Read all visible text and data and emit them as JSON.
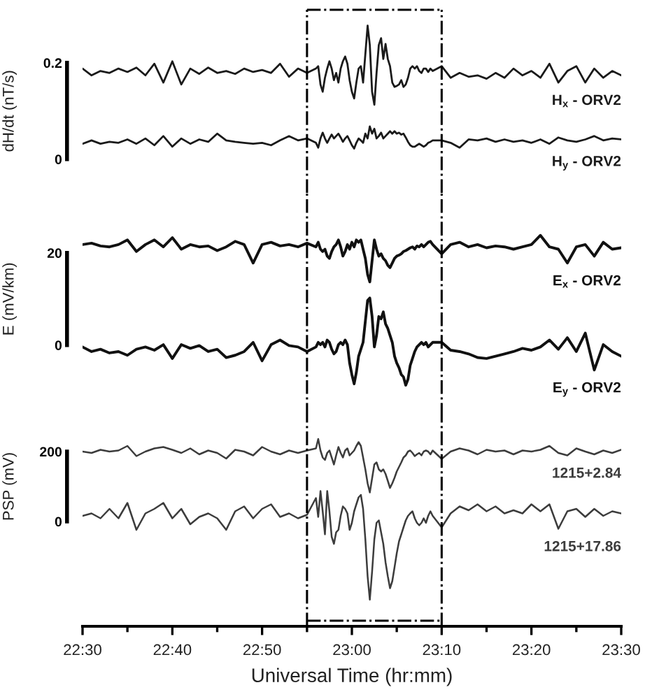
{
  "chart_data": [
    {
      "type": "line",
      "ylabel": "dH/dt (nT/s)",
      "xlim": [
        22.5,
        23.5
      ],
      "ylim": [
        -0.07,
        0.31
      ],
      "yticks": [
        0,
        0.2
      ],
      "tick_labels": "y",
      "ref_lines": [
        {
          "axis": "x",
          "value": 22.9167,
          "color": "#000000",
          "line_style": "dashdot"
        },
        {
          "axis": "x",
          "value": 23.1667,
          "color": "#000000",
          "line_style": "dashdot"
        }
      ],
      "x": [
        22.5,
        22.5167,
        22.5333,
        22.55,
        22.5667,
        22.5833,
        22.6,
        22.6167,
        22.6333,
        22.65,
        22.6667,
        22.6833,
        22.7,
        22.7167,
        22.7333,
        22.75,
        22.7667,
        22.7833,
        22.8,
        22.8167,
        22.8333,
        22.85,
        22.8667,
        22.8833,
        22.9,
        22.9167,
        22.9333,
        22.9375,
        22.9417,
        22.9458,
        22.95,
        22.9542,
        22.9583,
        22.9625,
        22.9667,
        22.9708,
        22.975,
        22.9792,
        22.9833,
        22.9875,
        22.9917,
        22.9958,
        23.0,
        23.0042,
        23.0083,
        23.0125,
        23.0167,
        23.0208,
        23.025,
        23.0292,
        23.0333,
        23.0375,
        23.0417,
        23.0458,
        23.05,
        23.0542,
        23.0583,
        23.0625,
        23.0667,
        23.0708,
        23.075,
        23.0792,
        23.0833,
        23.0875,
        23.0917,
        23.0958,
        23.1,
        23.1042,
        23.1083,
        23.1125,
        23.1167,
        23.1208,
        23.125,
        23.1292,
        23.1333,
        23.1375,
        23.1417,
        23.1458,
        23.15,
        23.1667,
        23.1833,
        23.2,
        23.2167,
        23.2333,
        23.25,
        23.2667,
        23.2833,
        23.3,
        23.3167,
        23.3333,
        23.35,
        23.3667,
        23.3833,
        23.4,
        23.4167,
        23.4333,
        23.45,
        23.4667,
        23.4833,
        23.5
      ],
      "series": [
        {
          "name": "H$_{x}$ - ORV2",
          "color": "#1a1a1a",
          "values": [
            0.188,
            0.174,
            0.183,
            0.179,
            0.188,
            0.181,
            0.19,
            0.174,
            0.198,
            0.159,
            0.203,
            0.155,
            0.188,
            0.177,
            0.19,
            0.179,
            0.183,
            0.177,
            0.188,
            0.181,
            0.185,
            0.179,
            0.198,
            0.171,
            0.188,
            0.179,
            0.188,
            0.193,
            0.155,
            0.14,
            0.169,
            0.188,
            0.203,
            0.188,
            0.164,
            0.179,
            0.159,
            0.188,
            0.203,
            0.213,
            0.198,
            0.164,
            0.14,
            0.126,
            0.159,
            0.188,
            0.193,
            0.159,
            0.218,
            0.277,
            0.237,
            0.14,
            0.113,
            0.179,
            0.237,
            0.251,
            0.208,
            0.239,
            0.208,
            0.193,
            0.159,
            0.15,
            0.152,
            0.155,
            0.164,
            0.15,
            0.155,
            0.169,
            0.188,
            0.193,
            0.188,
            0.193,
            0.183,
            0.179,
            0.188,
            0.188,
            0.181,
            0.188,
            0.183,
            0.193,
            0.169,
            0.179,
            0.171,
            0.174,
            0.167,
            0.179,
            0.169,
            0.188,
            0.174,
            0.183,
            0.169,
            0.198,
            0.159,
            0.183,
            0.193,
            0.159,
            0.188,
            0.169,
            0.183,
            0.174
          ]
        },
        {
          "name": "H$_{y}$ - ORV2",
          "color": "#1a1a1a",
          "values": [
            0.032,
            0.039,
            0.032,
            0.036,
            0.034,
            0.041,
            0.032,
            0.043,
            0.029,
            0.048,
            0.026,
            0.043,
            0.032,
            0.041,
            0.036,
            0.053,
            0.039,
            0.036,
            0.034,
            0.032,
            0.034,
            0.029,
            0.039,
            0.048,
            0.039,
            0.043,
            0.034,
            0.024,
            0.043,
            0.055,
            0.043,
            0.034,
            0.043,
            0.051,
            0.043,
            0.048,
            0.053,
            0.045,
            0.036,
            0.043,
            0.048,
            0.039,
            0.029,
            0.022,
            0.034,
            0.043,
            0.039,
            0.034,
            0.053,
            0.043,
            0.068,
            0.053,
            0.063,
            0.043,
            0.048,
            0.055,
            0.043,
            0.048,
            0.053,
            0.058,
            0.053,
            0.058,
            0.053,
            0.055,
            0.051,
            0.053,
            0.045,
            0.036,
            0.029,
            0.026,
            0.026,
            0.029,
            0.032,
            0.029,
            0.026,
            0.029,
            0.034,
            0.036,
            0.039,
            0.039,
            0.034,
            0.024,
            0.041,
            0.039,
            0.043,
            0.036,
            0.041,
            0.036,
            0.039,
            0.034,
            0.041,
            0.032,
            0.045,
            0.039,
            0.036,
            0.041,
            0.048,
            0.039,
            0.043,
            0.041
          ]
        }
      ]
    },
    {
      "type": "line",
      "ylabel": "E (mV/km)",
      "xlim": [
        22.5,
        23.5
      ],
      "ylim": [
        -15.5,
        33
      ],
      "yticks": [
        0,
        20
      ],
      "tick_labels": "y",
      "ref_lines": [
        {
          "axis": "x",
          "value": 22.9167,
          "color": "#000000",
          "line_style": "dashdot"
        },
        {
          "axis": "x",
          "value": 23.1667,
          "color": "#000000",
          "line_style": "dashdot"
        }
      ],
      "x": [
        22.5,
        22.5167,
        22.5333,
        22.55,
        22.5667,
        22.5833,
        22.6,
        22.6167,
        22.6333,
        22.65,
        22.6667,
        22.6833,
        22.7,
        22.7167,
        22.7333,
        22.75,
        22.7667,
        22.7833,
        22.8,
        22.8167,
        22.8333,
        22.85,
        22.8667,
        22.8833,
        22.9,
        22.9167,
        22.9333,
        22.9375,
        22.9417,
        22.9458,
        22.95,
        22.9542,
        22.9583,
        22.9625,
        22.9667,
        22.9708,
        22.975,
        22.9792,
        22.9833,
        22.9875,
        22.9917,
        22.9958,
        23.0,
        23.0042,
        23.0083,
        23.0125,
        23.0167,
        23.0208,
        23.025,
        23.0292,
        23.0333,
        23.0375,
        23.0417,
        23.0458,
        23.05,
        23.0542,
        23.0583,
        23.0625,
        23.0667,
        23.0708,
        23.075,
        23.0792,
        23.0833,
        23.0875,
        23.0917,
        23.0958,
        23.1,
        23.1042,
        23.1083,
        23.1125,
        23.1167,
        23.1208,
        23.125,
        23.1292,
        23.1333,
        23.1375,
        23.1417,
        23.1458,
        23.15,
        23.1667,
        23.1833,
        23.2,
        23.2167,
        23.2333,
        23.25,
        23.2667,
        23.2833,
        23.3,
        23.3167,
        23.3333,
        23.35,
        23.3667,
        23.3833,
        23.4,
        23.4167,
        23.4333,
        23.45,
        23.4667,
        23.4833,
        23.5
      ],
      "series": [
        {
          "name": "E$_{x}$ - ORV2",
          "color": "#111111",
          "values": [
            21.8,
            22.1,
            21.5,
            21.3,
            21.8,
            22.8,
            20.3,
            21.8,
            22.8,
            21.3,
            23.3,
            20.8,
            21.8,
            21.3,
            21.5,
            20.5,
            21.3,
            22.5,
            21.8,
            17.8,
            21.8,
            22.3,
            21.5,
            21.8,
            21.3,
            22.1,
            21.3,
            22.3,
            20.8,
            20.3,
            20.8,
            19.3,
            18.8,
            20.3,
            21.3,
            21.8,
            22.8,
            21.3,
            19.3,
            20.3,
            21.8,
            20.8,
            22.3,
            21.3,
            22.8,
            22.3,
            22.8,
            20.8,
            18.8,
            15.3,
            13.7,
            18.3,
            22.8,
            20.8,
            19.3,
            19.8,
            18.8,
            18.3,
            17.3,
            16.8,
            17.8,
            18.8,
            19.3,
            19.5,
            19.8,
            20.3,
            20.5,
            20.8,
            21.1,
            21.3,
            20.8,
            21.5,
            21.3,
            21.8,
            21.3,
            21.8,
            22.3,
            22.5,
            21.8,
            19.8,
            21.8,
            22.3,
            21.3,
            21.8,
            21.1,
            21.5,
            21.3,
            20.8,
            21.3,
            21.8,
            23.8,
            21.3,
            20.8,
            17.8,
            21.3,
            21.8,
            19.3,
            22.3,
            20.8,
            21.1
          ]
        },
        {
          "name": "E$_{y}$ - ORV2",
          "color": "#111111",
          "values": [
            -0.4,
            -1.4,
            -0.9,
            -1.7,
            -1.4,
            -2.2,
            -0.9,
            -0.4,
            -1.1,
            0.1,
            -2.9,
            0.1,
            -0.7,
            -0.1,
            -1.4,
            -0.9,
            -2.7,
            -2.2,
            -1.4,
            0.6,
            -3.4,
            0.1,
            1.1,
            -0.1,
            -0.4,
            -1.4,
            -0.4,
            0.6,
            0.1,
            0.6,
            -0.4,
            1.1,
            0.6,
            -0.9,
            -1.9,
            -1.4,
            0.1,
            0.6,
            0.1,
            1.1,
            0.1,
            -3.9,
            -6.4,
            -8.4,
            -5.9,
            -2.4,
            -0.9,
            0.6,
            5.2,
            9.7,
            10.2,
            6.2,
            -0.4,
            2.1,
            6.2,
            5.7,
            7.2,
            4.6,
            3.6,
            2.1,
            0.6,
            -2.4,
            -3.9,
            -4.9,
            -6.4,
            -6.9,
            -8.7,
            -7.4,
            -4.4,
            -2.9,
            -1.4,
            -0.4,
            0.1,
            0.6,
            0.1,
            0.6,
            -0.4,
            0.1,
            0.6,
            0.6,
            -1.1,
            -1.4,
            -1.9,
            -2.7,
            -2.9,
            -2.4,
            -1.9,
            -1.4,
            -0.7,
            -1.1,
            -0.4,
            1.1,
            -0.9,
            1.6,
            -1.4,
            2.6,
            -5.4,
            0.1,
            -1.4,
            -2.4
          ]
        }
      ]
    },
    {
      "type": "line",
      "ylabel": "PSP (mV)",
      "xlabel": "Universal Time (hr:mm)",
      "xlim": [
        22.5,
        23.5
      ],
      "ylim": [
        -300,
        300
      ],
      "yticks": [
        0,
        200
      ],
      "xticks": [
        {
          "value": 22.5,
          "label": "22:30"
        },
        {
          "value": 22.5833,
          "label": null
        },
        {
          "value": 22.6667,
          "label": "22:40"
        },
        {
          "value": 22.75,
          "label": null
        },
        {
          "value": 22.8333,
          "label": "22:50"
        },
        {
          "value": 22.9167,
          "label": null
        },
        {
          "value": 23.0,
          "label": "23:00"
        },
        {
          "value": 23.0833,
          "label": null
        },
        {
          "value": 23.1667,
          "label": "23:10"
        },
        {
          "value": 23.25,
          "label": null
        },
        {
          "value": 23.3333,
          "label": "23:20"
        },
        {
          "value": 23.4167,
          "label": null
        },
        {
          "value": 23.5,
          "label": "23:30"
        }
      ],
      "ref_lines": [
        {
          "axis": "x",
          "value": 22.9167,
          "color": "#000000",
          "line_style": "dashdot"
        },
        {
          "axis": "x",
          "value": 23.1667,
          "color": "#000000",
          "line_style": "dashdot"
        }
      ],
      "x": [
        22.5,
        22.5167,
        22.5333,
        22.55,
        22.5667,
        22.5833,
        22.6,
        22.6167,
        22.6333,
        22.65,
        22.6667,
        22.6833,
        22.7,
        22.7167,
        22.7333,
        22.75,
        22.7667,
        22.7833,
        22.8,
        22.8167,
        22.8333,
        22.85,
        22.8667,
        22.8833,
        22.9,
        22.9167,
        22.9333,
        22.9375,
        22.9417,
        22.9458,
        22.95,
        22.9542,
        22.9583,
        22.9625,
        22.9667,
        22.9708,
        22.975,
        22.9792,
        22.9833,
        22.9875,
        22.9917,
        22.9958,
        23.0,
        23.0042,
        23.0083,
        23.0125,
        23.0167,
        23.0208,
        23.025,
        23.0292,
        23.0333,
        23.0375,
        23.0417,
        23.0458,
        23.05,
        23.0542,
        23.0583,
        23.0625,
        23.0667,
        23.0708,
        23.075,
        23.0792,
        23.0833,
        23.0875,
        23.0917,
        23.0958,
        23.1,
        23.1042,
        23.1083,
        23.1125,
        23.1167,
        23.1208,
        23.125,
        23.1292,
        23.1333,
        23.1375,
        23.1417,
        23.1458,
        23.15,
        23.1667,
        23.1833,
        23.2,
        23.2167,
        23.2333,
        23.25,
        23.2667,
        23.2833,
        23.3,
        23.3167,
        23.3333,
        23.35,
        23.3667,
        23.3833,
        23.4,
        23.4167,
        23.4333,
        23.45,
        23.4667,
        23.4833,
        23.5
      ],
      "series": [
        {
          "name": "1215+2.84",
          "color": "#3c3c3c",
          "values": [
            200,
            196,
            205,
            200,
            203,
            216,
            187,
            200,
            209,
            213,
            205,
            196,
            209,
            192,
            203,
            196,
            180,
            205,
            200,
            189,
            213,
            200,
            192,
            203,
            196,
            203,
            209,
            236,
            203,
            183,
            176,
            196,
            203,
            183,
            163,
            189,
            213,
            196,
            183,
            203,
            209,
            189,
            196,
            203,
            216,
            227,
            216,
            183,
            149,
            109,
            83,
            123,
            163,
            169,
            149,
            143,
            149,
            136,
            116,
            96,
            109,
            125,
            143,
            156,
            169,
            183,
            189,
            200,
            203,
            196,
            187,
            192,
            196,
            189,
            200,
            203,
            200,
            192,
            203,
            179,
            200,
            209,
            203,
            192,
            205,
            200,
            203,
            192,
            203,
            200,
            205,
            216,
            196,
            189,
            209,
            200,
            192,
            203,
            196,
            205
          ]
        },
        {
          "name": "1215+17.86",
          "color": "#3c3c3c",
          "values": [
            16,
            23,
            9,
            36,
            9,
            53,
            -24,
            23,
            36,
            53,
            9,
            36,
            -8,
            13,
            23,
            9,
            -24,
            29,
            43,
            9,
            36,
            49,
            13,
            23,
            9,
            19,
            67,
            13,
            87,
            29,
            -37,
            87,
            29,
            -44,
            -64,
            -31,
            -24,
            16,
            43,
            36,
            23,
            -24,
            -4,
            29,
            49,
            69,
            76,
            36,
            -51,
            -157,
            -224,
            -144,
            -51,
            -4,
            3,
            -31,
            -64,
            -117,
            -157,
            -191,
            -171,
            -131,
            -91,
            -57,
            -37,
            -17,
            3,
            16,
            23,
            29,
            9,
            -4,
            -11,
            -4,
            9,
            -4,
            16,
            29,
            16,
            -17,
            23,
            43,
            32,
            49,
            29,
            43,
            23,
            32,
            23,
            49,
            29,
            49,
            -21,
            29,
            36,
            13,
            36,
            16,
            29,
            23
          ]
        }
      ]
    }
  ]
}
